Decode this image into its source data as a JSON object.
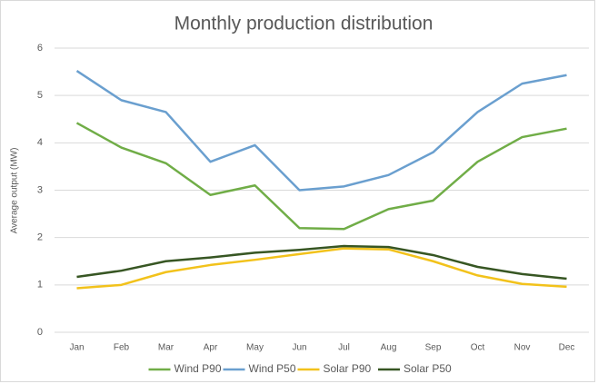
{
  "chart_data": {
    "type": "line",
    "title": "Monthly production distribution",
    "y_label": "Average output (MW)",
    "categories": [
      "Jan",
      "Feb",
      "Mar",
      "Apr",
      "May",
      "Jun",
      "Jul",
      "Aug",
      "Sep",
      "Oct",
      "Nov",
      "Dec"
    ],
    "series": [
      {
        "name": "Wind P90",
        "color": "#70ad47",
        "values": [
          4.42,
          3.9,
          3.57,
          2.9,
          3.1,
          2.2,
          2.18,
          2.6,
          2.78,
          3.6,
          4.12,
          4.3
        ]
      },
      {
        "name": "Wind P50",
        "color": "#6a9fcf",
        "values": [
          5.52,
          4.9,
          4.65,
          3.6,
          3.95,
          3.0,
          3.08,
          3.32,
          3.8,
          4.65,
          5.25,
          5.43
        ]
      },
      {
        "name": "Solar P90",
        "color": "#f2c21b",
        "values": [
          0.93,
          1.0,
          1.27,
          1.42,
          1.53,
          1.65,
          1.77,
          1.75,
          1.5,
          1.2,
          1.02,
          0.96
        ]
      },
      {
        "name": "Solar P50",
        "color": "#375623",
        "values": [
          1.17,
          1.3,
          1.5,
          1.58,
          1.68,
          1.74,
          1.82,
          1.8,
          1.63,
          1.38,
          1.23,
          1.13
        ]
      }
    ],
    "ylim": [
      0,
      6
    ],
    "yticks": [
      0,
      1,
      2,
      3,
      4,
      5,
      6
    ],
    "grid": true
  }
}
